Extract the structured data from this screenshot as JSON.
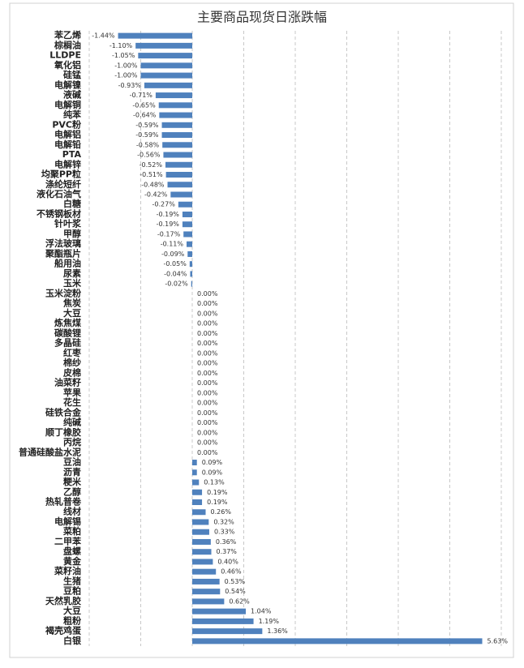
{
  "chart_data": {
    "type": "hbar",
    "title": "主要商品现货日涨跌幅",
    "categories": [
      "苯乙烯",
      "棕榈油",
      "LLDPE",
      "氧化铝",
      "硅锰",
      "电解镍",
      "液碱",
      "电解铜",
      "纯苯",
      "PVC粉",
      "电解铝",
      "电解铅",
      "PTA",
      "电解锌",
      "均聚PP粒",
      "涤纶短纤",
      "液化石油气",
      "白糖",
      "不锈钢板材",
      "针叶浆",
      "甲醇",
      "浮法玻璃",
      "聚酯瓶片",
      "船用油",
      "尿素",
      "玉米",
      "玉米淀粉",
      "焦炭",
      "大豆",
      "炼焦煤",
      "碳酸锂",
      "多晶硅",
      "红枣",
      "棉纱",
      "皮棉",
      "油菜籽",
      "苹果",
      "花生",
      "硅铁合金",
      "纯碱",
      "顺丁橡胶",
      "丙烷",
      "普通硅酸盐水泥",
      "豆油",
      "沥青",
      "粳米",
      "乙醇",
      "热轧普卷",
      "线材",
      "电解锡",
      "菜粕",
      "二甲苯",
      "盘螺",
      "黄金",
      "菜籽油",
      "生猪",
      "豆粕",
      "天然乳胶",
      "大豆",
      "粗粉",
      "褐壳鸡蛋",
      "白银"
    ],
    "values": [
      -1.44,
      -1.1,
      -1.05,
      -1.0,
      -1.0,
      -0.93,
      -0.71,
      -0.65,
      -0.64,
      -0.59,
      -0.59,
      -0.58,
      -0.56,
      -0.52,
      -0.51,
      -0.48,
      -0.42,
      -0.27,
      -0.19,
      -0.19,
      -0.17,
      -0.11,
      -0.09,
      -0.05,
      -0.04,
      -0.02,
      0,
      0,
      0,
      0,
      0,
      0,
      0,
      0,
      0,
      0,
      0,
      0,
      0,
      0,
      0,
      0,
      0,
      0.09,
      0.09,
      0.13,
      0.19,
      0.19,
      0.26,
      0.32,
      0.33,
      0.36,
      0.37,
      0.4,
      0.46,
      0.53,
      0.54,
      0.62,
      1.04,
      1.19,
      1.36,
      5.63
    ],
    "value_labels": [
      "-1.44%",
      "-1.10%",
      "-1.05%",
      "-1.00%",
      "-1.00%",
      "-0.93%",
      "-0.71%",
      "-0.65%",
      "-0.64%",
      "-0.59%",
      "-0.59%",
      "-0.58%",
      "-0.56%",
      "-0.52%",
      "-0.51%",
      "-0.48%",
      "-0.42%",
      "-0.27%",
      "-0.19%",
      "-0.19%",
      "-0.17%",
      "-0.11%",
      "-0.09%",
      "-0.05%",
      "-0.04%",
      "-0.02%",
      "0.00%",
      "0.00%",
      "0.00%",
      "0.00%",
      "0.00%",
      "0.00%",
      "0.00%",
      "0.00%",
      "0.00%",
      "0.00%",
      "0.00%",
      "0.00%",
      "0.00%",
      "0.00%",
      "0.00%",
      "0.00%",
      "0.00%",
      "0.09%",
      "0.09%",
      "0.13%",
      "0.19%",
      "0.19%",
      "0.26%",
      "0.32%",
      "0.33%",
      "0.36%",
      "0.37%",
      "0.40%",
      "0.46%",
      "0.53%",
      "0.54%",
      "0.62%",
      "1.04%",
      "1.19%",
      "1.36%",
      "5.63%"
    ],
    "color": "#4f81bd",
    "xlim": [
      -2,
      6
    ],
    "xticks": [
      -2,
      -1,
      0,
      1,
      2,
      3,
      4,
      5,
      6
    ],
    "grid": true
  }
}
